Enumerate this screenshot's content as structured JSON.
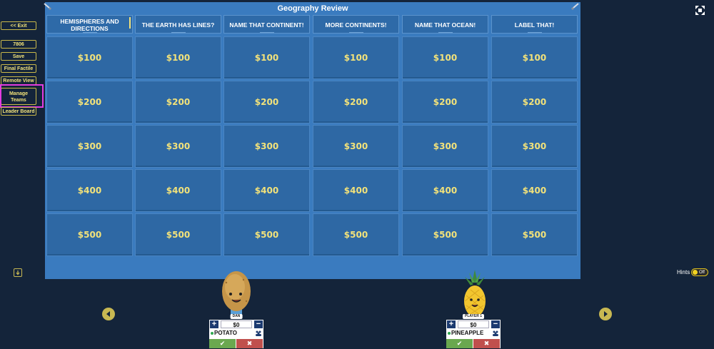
{
  "sidebar": {
    "exit_label": "<< Exit",
    "game_code": "7806",
    "save_label": "Save",
    "final_factile_label": "Final Factile",
    "remote_view_label": "Remote View",
    "manage_teams_label": "Manage Teams",
    "leader_board_label": "Leader Board"
  },
  "board": {
    "title": "Geography Review",
    "categories": [
      "HEMISPHERES AND DIRECTIONS",
      "THE EARTH HAS LINES?",
      "NAME THAT CONTINENT!",
      "MORE CONTINENTS!",
      "NAME THAT OCEAN!",
      "LABEL THAT!"
    ],
    "values": [
      "$100",
      "$200",
      "$300",
      "$400",
      "$500"
    ]
  },
  "hints": {
    "label": "Hints",
    "state": "Off"
  },
  "teams": [
    {
      "tag": "DAN",
      "score": "$0",
      "name": "POTATO"
    },
    {
      "tag": "PLAYER 1",
      "score": "$0",
      "name": "PINEAPPLE"
    }
  ],
  "colors": {
    "background": "#14243a",
    "board": "#3a7bbf",
    "tile": "#2e68a4",
    "value_text": "#f2e27a",
    "highlight": "#e33ce0"
  },
  "icons": {
    "fullscreen": "fullscreen-icon",
    "download": "download-icon",
    "prev": "chevron-left-icon",
    "next": "chevron-right-icon",
    "arrow": "arrow-pointer-icon"
  }
}
